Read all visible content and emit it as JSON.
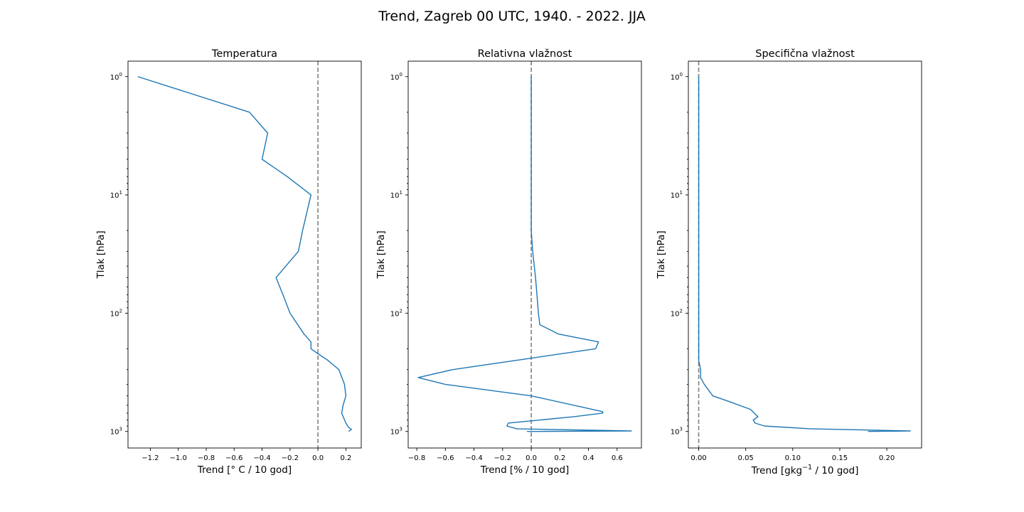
{
  "figure": {
    "suptitle": "Trend, Zagreb 00 UTC, 1940. - 2022. JJA",
    "line_color": "#1f77b4",
    "zero_line_color": "#808080"
  },
  "chart_data": [
    {
      "type": "line",
      "title": "Temperatura",
      "xlabel": "Trend [° C / 10 god]",
      "ylabel": "Tlak [hPa]",
      "yscale": "log",
      "yinverted": true,
      "xlim": [
        -1.36,
        0.31
      ],
      "ylim": [
        1380,
        0.74
      ],
      "xticks": [
        -1.2,
        -1.0,
        -0.8,
        -0.6,
        -0.4,
        -0.2,
        0.0,
        0.2
      ],
      "xticklabels": [
        "−1.2",
        "−1.0",
        "−0.8",
        "−0.6",
        "−0.4",
        "−0.2",
        "0.0",
        "0.2"
      ],
      "yticks": [
        1,
        10,
        100,
        1000
      ],
      "yticklabels": [
        {
          "base": "10",
          "exp": "0"
        },
        {
          "base": "10",
          "exp": "1"
        },
        {
          "base": "10",
          "exp": "2"
        },
        {
          "base": "10",
          "exp": "3"
        }
      ],
      "reference_line_x": 0.0,
      "grid": false,
      "points": [
        {
          "x": 0.22,
          "y": 1000
        },
        {
          "x": 0.24,
          "y": 960
        },
        {
          "x": 0.22,
          "y": 925
        },
        {
          "x": 0.2,
          "y": 850
        },
        {
          "x": 0.17,
          "y": 700
        },
        {
          "x": 0.18,
          "y": 600
        },
        {
          "x": 0.2,
          "y": 500
        },
        {
          "x": 0.19,
          "y": 400
        },
        {
          "x": 0.15,
          "y": 300
        },
        {
          "x": 0.07,
          "y": 250
        },
        {
          "x": 0.0,
          "y": 220
        },
        {
          "x": -0.05,
          "y": 200
        },
        {
          "x": -0.05,
          "y": 175
        },
        {
          "x": -0.1,
          "y": 150
        },
        {
          "x": -0.2,
          "y": 100
        },
        {
          "x": -0.25,
          "y": 70
        },
        {
          "x": -0.3,
          "y": 50
        },
        {
          "x": -0.14,
          "y": 30
        },
        {
          "x": -0.11,
          "y": 20
        },
        {
          "x": -0.05,
          "y": 10
        },
        {
          "x": -0.22,
          "y": 7
        },
        {
          "x": -0.4,
          "y": 5
        },
        {
          "x": -0.36,
          "y": 3
        },
        {
          "x": -0.49,
          "y": 2
        },
        {
          "x": -1.29,
          "y": 1
        }
      ]
    },
    {
      "type": "line",
      "title": "Relativna vlažnost",
      "xlabel": "Trend [% / 10 god]",
      "ylabel": "Tlak [hPa]",
      "yscale": "log",
      "yinverted": true,
      "xlim": [
        -0.86,
        0.77
      ],
      "ylim": [
        1380,
        0.74
      ],
      "xticks": [
        -0.8,
        -0.6,
        -0.4,
        -0.2,
        0.0,
        0.2,
        0.4,
        0.6
      ],
      "xticklabels": [
        "−0.8",
        "−0.6",
        "−0.4",
        "−0.2",
        "0.0",
        "0.2",
        "0.4",
        "0.6"
      ],
      "yticks": [
        1,
        10,
        100,
        1000
      ],
      "yticklabels": [
        {
          "base": "10",
          "exp": "0"
        },
        {
          "base": "10",
          "exp": "1"
        },
        {
          "base": "10",
          "exp": "2"
        },
        {
          "base": "10",
          "exp": "3"
        }
      ],
      "reference_line_x": 0.0,
      "grid": false,
      "points": [
        {
          "x": -0.03,
          "y": 1000
        },
        {
          "x": 0.7,
          "y": 990
        },
        {
          "x": -0.1,
          "y": 950
        },
        {
          "x": -0.17,
          "y": 900
        },
        {
          "x": -0.16,
          "y": 850
        },
        {
          "x": 0.3,
          "y": 750
        },
        {
          "x": 0.5,
          "y": 700
        },
        {
          "x": 0.5,
          "y": 680
        },
        {
          "x": 0.0,
          "y": 500
        },
        {
          "x": -0.6,
          "y": 400
        },
        {
          "x": -0.79,
          "y": 350
        },
        {
          "x": -0.55,
          "y": 300
        },
        {
          "x": 0.0,
          "y": 240
        },
        {
          "x": 0.45,
          "y": 200
        },
        {
          "x": 0.47,
          "y": 175
        },
        {
          "x": 0.19,
          "y": 150
        },
        {
          "x": 0.06,
          "y": 125
        },
        {
          "x": 0.05,
          "y": 100
        },
        {
          "x": 0.04,
          "y": 70
        },
        {
          "x": 0.03,
          "y": 50
        },
        {
          "x": 0.01,
          "y": 30
        },
        {
          "x": 0.0,
          "y": 20
        },
        {
          "x": 0.0,
          "y": 10
        },
        {
          "x": 0.0,
          "y": 5
        },
        {
          "x": 0.0,
          "y": 1
        }
      ]
    },
    {
      "type": "line",
      "title": "Specifična vlažnost",
      "xlabel": "Trend [gkg⁻¹ / 10 god]",
      "xlabel_parts": {
        "before": "Trend [gkg",
        "sup": "−1",
        "after": " / 10 god]"
      },
      "ylabel": "Tlak [hPa]",
      "yscale": "log",
      "yinverted": true,
      "xlim": [
        -0.011,
        0.237
      ],
      "ylim": [
        1380,
        0.74
      ],
      "xticks": [
        0.0,
        0.05,
        0.1,
        0.15,
        0.2
      ],
      "xticklabels": [
        "0.00",
        "0.05",
        "0.10",
        "0.15",
        "0.20"
      ],
      "yticks": [
        1,
        10,
        100,
        1000
      ],
      "yticklabels": [
        {
          "base": "10",
          "exp": "0"
        },
        {
          "base": "10",
          "exp": "1"
        },
        {
          "base": "10",
          "exp": "2"
        },
        {
          "base": "10",
          "exp": "3"
        }
      ],
      "reference_line_x": 0.0,
      "grid": false,
      "points": [
        {
          "x": 0.18,
          "y": 1000
        },
        {
          "x": 0.225,
          "y": 990
        },
        {
          "x": 0.12,
          "y": 950
        },
        {
          "x": 0.07,
          "y": 900
        },
        {
          "x": 0.06,
          "y": 850
        },
        {
          "x": 0.058,
          "y": 800
        },
        {
          "x": 0.063,
          "y": 750
        },
        {
          "x": 0.055,
          "y": 650
        },
        {
          "x": 0.03,
          "y": 550
        },
        {
          "x": 0.015,
          "y": 500
        },
        {
          "x": 0.006,
          "y": 400
        },
        {
          "x": 0.002,
          "y": 350
        },
        {
          "x": 0.002,
          "y": 300
        },
        {
          "x": 0.0,
          "y": 250
        },
        {
          "x": 0.0,
          "y": 200
        },
        {
          "x": 0.0,
          "y": 100
        },
        {
          "x": 0.0,
          "y": 10
        },
        {
          "x": 0.0,
          "y": 1
        }
      ]
    }
  ]
}
